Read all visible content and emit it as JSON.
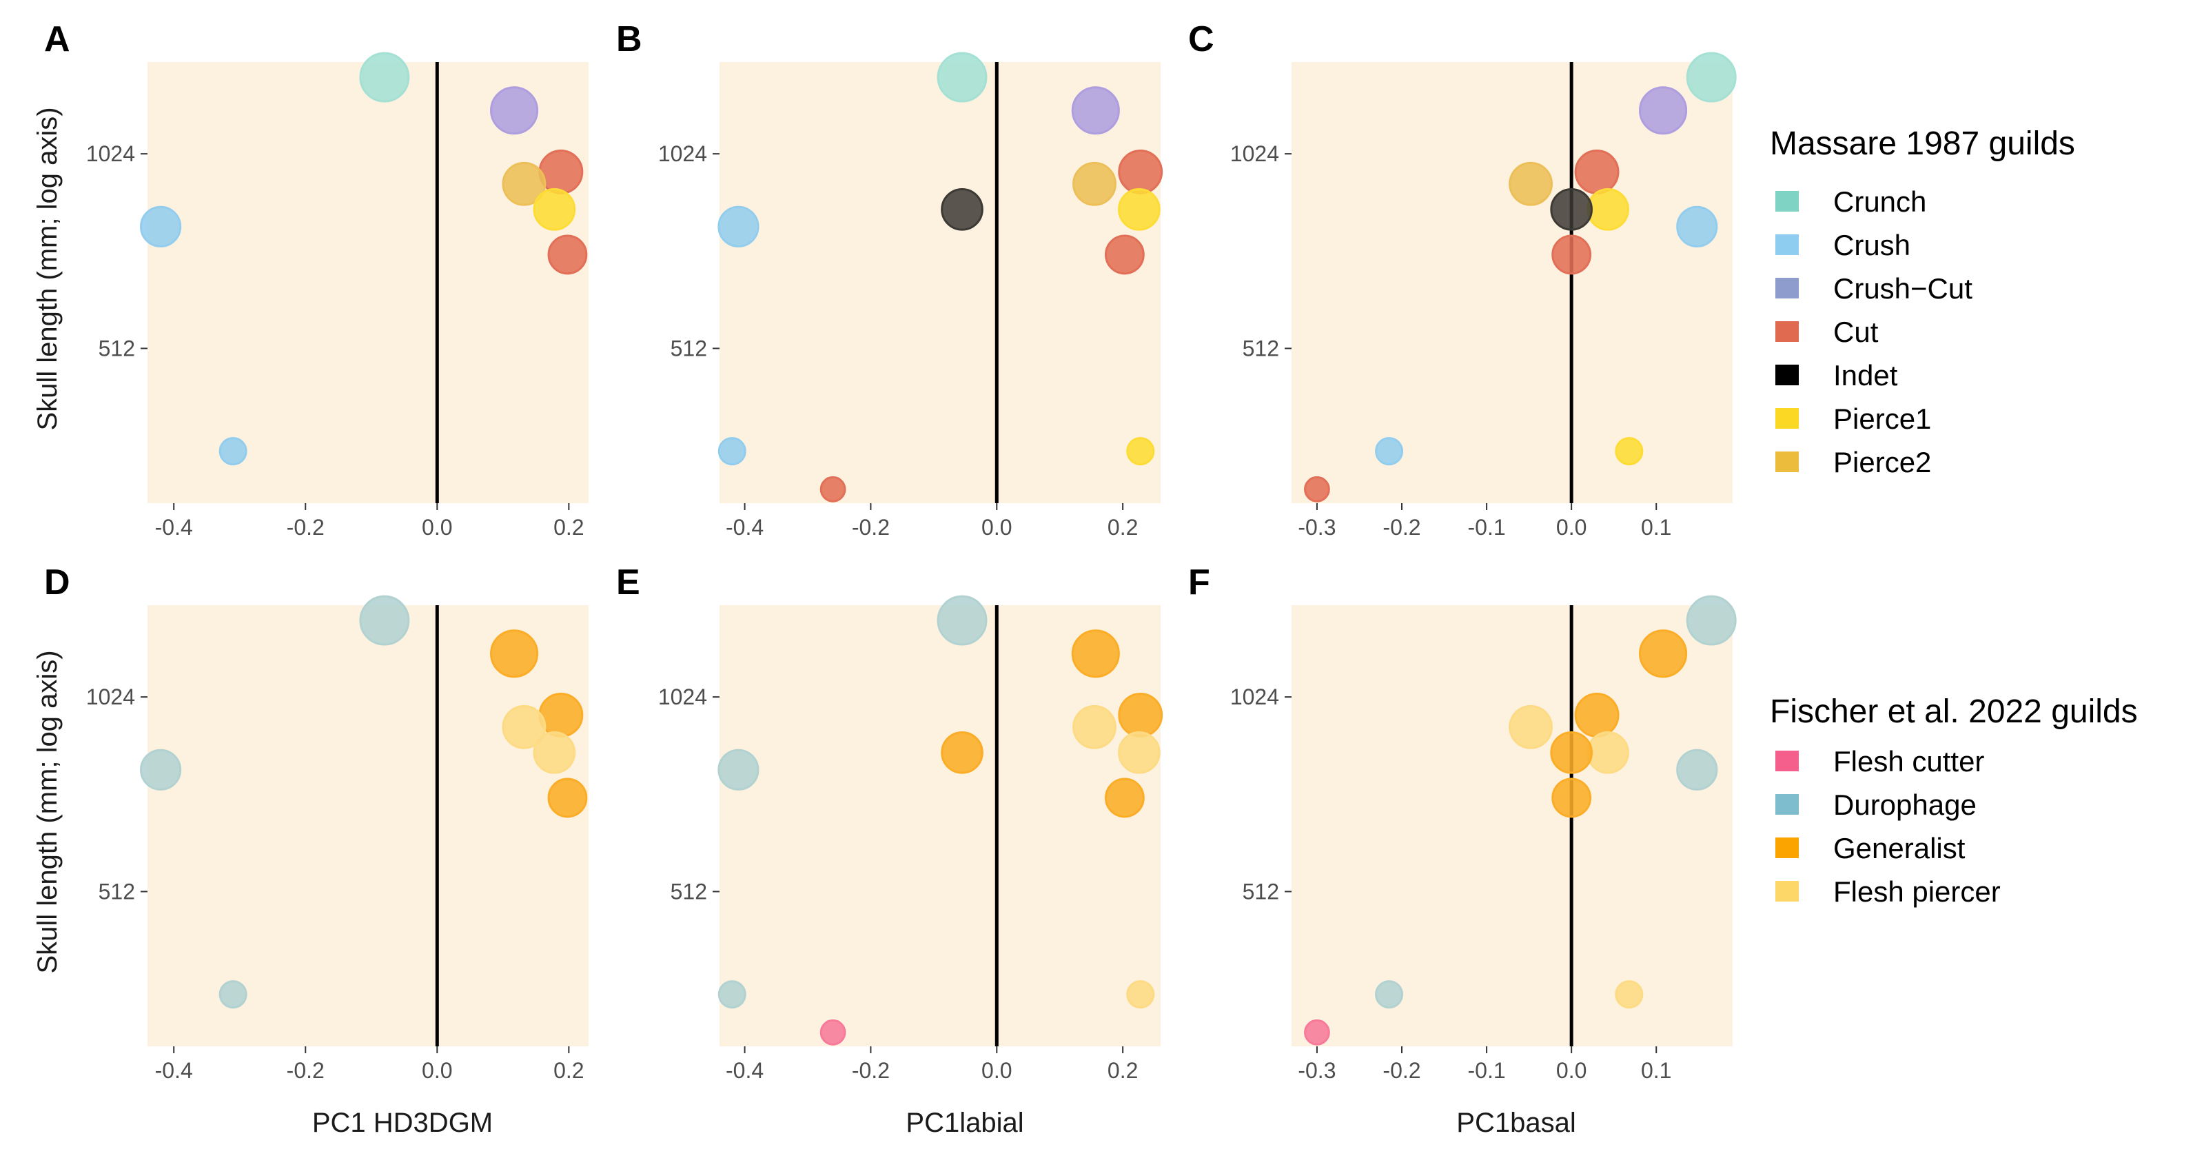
{
  "chart_data": [
    {
      "panel": "A",
      "type": "scatter",
      "x_key": "hd3dgm",
      "xlim": [
        -0.44,
        0.23
      ],
      "xticks": [
        -0.4,
        -0.2,
        0.0,
        0.2
      ],
      "xtick_labels": [
        "-0.4",
        "-0.2",
        "0.0",
        "0.2"
      ],
      "xlabel": "",
      "ylabel": "Skull length (mm; log axis)",
      "yticks": [
        512,
        1024
      ],
      "ytick_labels": [
        "512",
        "1024"
      ],
      "ylim": [
        295,
        1420
      ],
      "y_scale": "log",
      "vline_x": 0,
      "color_scheme": "massare"
    },
    {
      "panel": "B",
      "type": "scatter",
      "x_key": "labial",
      "xlim": [
        -0.44,
        0.26
      ],
      "xticks": [
        -0.4,
        -0.2,
        0.0,
        0.2
      ],
      "xtick_labels": [
        "-0.4",
        "-0.2",
        "0.0",
        "0.2"
      ],
      "xlabel": "",
      "ylabel": "",
      "yticks": [
        512,
        1024
      ],
      "ytick_labels": [
        "512",
        "1024"
      ],
      "ylim": [
        295,
        1420
      ],
      "y_scale": "log",
      "vline_x": 0,
      "color_scheme": "massare"
    },
    {
      "panel": "C",
      "type": "scatter",
      "x_key": "basal",
      "xlim": [
        -0.33,
        0.19
      ],
      "xticks": [
        -0.3,
        -0.2,
        -0.1,
        0.0,
        0.1
      ],
      "xtick_labels": [
        "-0.3",
        "-0.2",
        "-0.1",
        "0.0",
        "0.1"
      ],
      "xlabel": "",
      "ylabel": "",
      "yticks": [
        512,
        1024
      ],
      "ytick_labels": [
        "512",
        "1024"
      ],
      "ylim": [
        295,
        1420
      ],
      "y_scale": "log",
      "vline_x": 0,
      "color_scheme": "massare"
    },
    {
      "panel": "D",
      "type": "scatter",
      "x_key": "hd3dgm",
      "xlim": [
        -0.44,
        0.23
      ],
      "xticks": [
        -0.4,
        -0.2,
        0.0,
        0.2
      ],
      "xtick_labels": [
        "-0.4",
        "-0.2",
        "0.0",
        "0.2"
      ],
      "xlabel": "PC1 HD3DGM",
      "ylabel": "Skull length (mm; log axis)",
      "yticks": [
        512,
        1024
      ],
      "ytick_labels": [
        "512",
        "1024"
      ],
      "ylim": [
        295,
        1420
      ],
      "y_scale": "log",
      "vline_x": 0,
      "color_scheme": "fischer"
    },
    {
      "panel": "E",
      "type": "scatter",
      "x_key": "labial",
      "xlim": [
        -0.44,
        0.26
      ],
      "xticks": [
        -0.4,
        -0.2,
        0.0,
        0.2
      ],
      "xtick_labels": [
        "-0.4",
        "-0.2",
        "0.0",
        "0.2"
      ],
      "xlabel": "PC1labial",
      "ylabel": "",
      "yticks": [
        512,
        1024
      ],
      "ytick_labels": [
        "512",
        "1024"
      ],
      "ylim": [
        295,
        1420
      ],
      "y_scale": "log",
      "vline_x": 0,
      "color_scheme": "fischer"
    },
    {
      "panel": "F",
      "type": "scatter",
      "x_key": "basal",
      "xlim": [
        -0.33,
        0.19
      ],
      "xticks": [
        -0.3,
        -0.2,
        -0.1,
        0.0,
        0.1
      ],
      "xtick_labels": [
        "-0.3",
        "-0.2",
        "-0.1",
        "0.0",
        "0.1"
      ],
      "xlabel": "PC1basal",
      "ylabel": "",
      "yticks": [
        512,
        1024
      ],
      "ytick_labels": [
        "512",
        "1024"
      ],
      "ylim": [
        295,
        1420
      ],
      "y_scale": "log",
      "vline_x": 0,
      "color_scheme": "fischer"
    }
  ],
  "specimens": [
    {
      "id": 1,
      "skull_length": 1345,
      "hd3dgm": -0.08,
      "labial": -0.055,
      "basal": 0.165,
      "massare": "Crunch",
      "fischer": "Durophage"
    },
    {
      "id": 2,
      "skull_length": 1195,
      "hd3dgm": 0.117,
      "labial": 0.157,
      "basal": 0.108,
      "massare": "Crush-Cut",
      "fischer": "Generalist"
    },
    {
      "id": 3,
      "skull_length": 960,
      "hd3dgm": 0.188,
      "labial": 0.228,
      "basal": 0.03,
      "massare": "Cut",
      "fischer": "Generalist"
    },
    {
      "id": 4,
      "skull_length": 920,
      "hd3dgm": 0.132,
      "labial": 0.155,
      "basal": -0.048,
      "massare": "Pierce2",
      "fischer": "Flesh piercer"
    },
    {
      "id": 5,
      "skull_length": 840,
      "hd3dgm": 0.178,
      "labial": 0.226,
      "basal": 0.043,
      "massare": "Pierce1",
      "fischer": "Flesh piercer"
    },
    {
      "id": 6,
      "skull_length": 790,
      "hd3dgm": -0.42,
      "labial": -0.41,
      "basal": 0.148,
      "massare": "Crush",
      "fischer": "Durophage"
    },
    {
      "id": 7,
      "skull_length": 715,
      "hd3dgm": 0.198,
      "labial": 0.203,
      "basal": 0.0,
      "massare": "Cut",
      "fischer": "Generalist"
    },
    {
      "id": 8,
      "skull_length": 840,
      "hd3dgm": null,
      "labial": -0.055,
      "basal": 0.0,
      "massare": "Indet",
      "fischer": "Generalist"
    },
    {
      "id": 9,
      "skull_length": 355,
      "hd3dgm": -0.31,
      "labial": -0.42,
      "basal": -0.215,
      "massare": "Crush",
      "fischer": "Durophage"
    },
    {
      "id": 10,
      "skull_length": 355,
      "hd3dgm": null,
      "labial": 0.228,
      "basal": 0.068,
      "massare": "Pierce1",
      "fischer": "Flesh piercer"
    },
    {
      "id": 11,
      "skull_length": 310,
      "hd3dgm": null,
      "labial": -0.26,
      "basal": -0.3,
      "massare": "Cut",
      "fischer": "Flesh cutter"
    }
  ],
  "legends": {
    "massare": {
      "title": "Massare 1987 guilds",
      "items": [
        {
          "label": "Crunch",
          "color": "#7fd3c5"
        },
        {
          "label": "Crush",
          "color": "#8ecdf0"
        },
        {
          "label": "Crush−Cut",
          "color": "#8d9ccd"
        },
        {
          "label": "Cut",
          "color": "#e06a50"
        },
        {
          "label": "Indet",
          "color": "#000000"
        },
        {
          "label": "Pierce1",
          "color": "#fbd823"
        },
        {
          "label": "Pierce2",
          "color": "#ecbc3c"
        }
      ]
    },
    "fischer": {
      "title": "Fischer et al. 2022 guilds",
      "items": [
        {
          "label": "Flesh cutter",
          "color": "#f4608b"
        },
        {
          "label": "Durophage",
          "color": "#7dbdcd"
        },
        {
          "label": "Generalist",
          "color": "#fba400"
        },
        {
          "label": "Flesh piercer",
          "color": "#fdd768"
        }
      ]
    }
  },
  "point_colors": {
    "massare": {
      "Crunch": "#a4e0d4",
      "Crush": "#93cdee",
      "Crush-Cut": "#ae9edf",
      "Cut": "#e26f57",
      "Indet": "#3d3a35",
      "Pierce1": "#fddc36",
      "Pierce2": "#ecbf58"
    },
    "fischer": {
      "Flesh cutter": "#f77a9a",
      "Durophage": "#b2d2d2",
      "Generalist": "#fbad28",
      "Flesh piercer": "#fddb84"
    }
  },
  "panel_background": "#fdf1df"
}
